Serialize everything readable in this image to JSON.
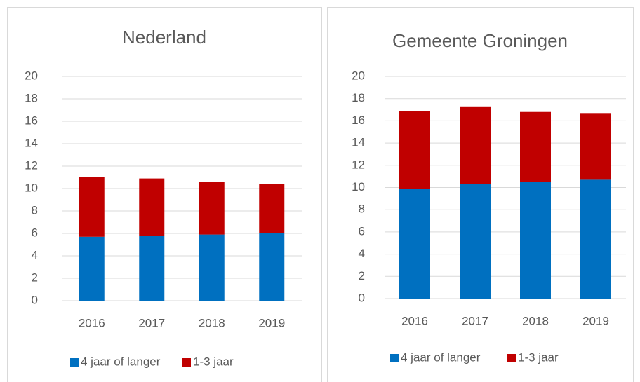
{
  "chart_data": [
    {
      "type": "stacked_bar",
      "title": "Nederland",
      "categories": [
        "2016",
        "2017",
        "2018",
        "2019"
      ],
      "series": [
        {
          "name": "4 jaar of langer",
          "color": "#0070c0",
          "values": [
            5.7,
            5.8,
            5.9,
            6.0
          ]
        },
        {
          "name": "1-3 jaar",
          "color": "#c00000",
          "values": [
            5.3,
            5.1,
            4.7,
            4.4
          ]
        }
      ],
      "ylim": [
        0,
        20
      ],
      "yticks": [
        0,
        2,
        4,
        6,
        8,
        10,
        12,
        14,
        16,
        18,
        20
      ],
      "grid": true,
      "legend": "bottom"
    },
    {
      "type": "stacked_bar",
      "title": "Gemeente Groningen",
      "categories": [
        "2016",
        "2017",
        "2018",
        "2019"
      ],
      "series": [
        {
          "name": "4 jaar of langer",
          "color": "#0070c0",
          "values": [
            9.9,
            10.3,
            10.5,
            10.7
          ]
        },
        {
          "name": "1-3 jaar",
          "color": "#c00000",
          "values": [
            7.0,
            7.0,
            6.3,
            6.0
          ]
        }
      ],
      "ylim": [
        0,
        20
      ],
      "yticks": [
        0,
        2,
        4,
        6,
        8,
        10,
        12,
        14,
        16,
        18,
        20
      ],
      "grid": true,
      "legend": "bottom"
    }
  ]
}
